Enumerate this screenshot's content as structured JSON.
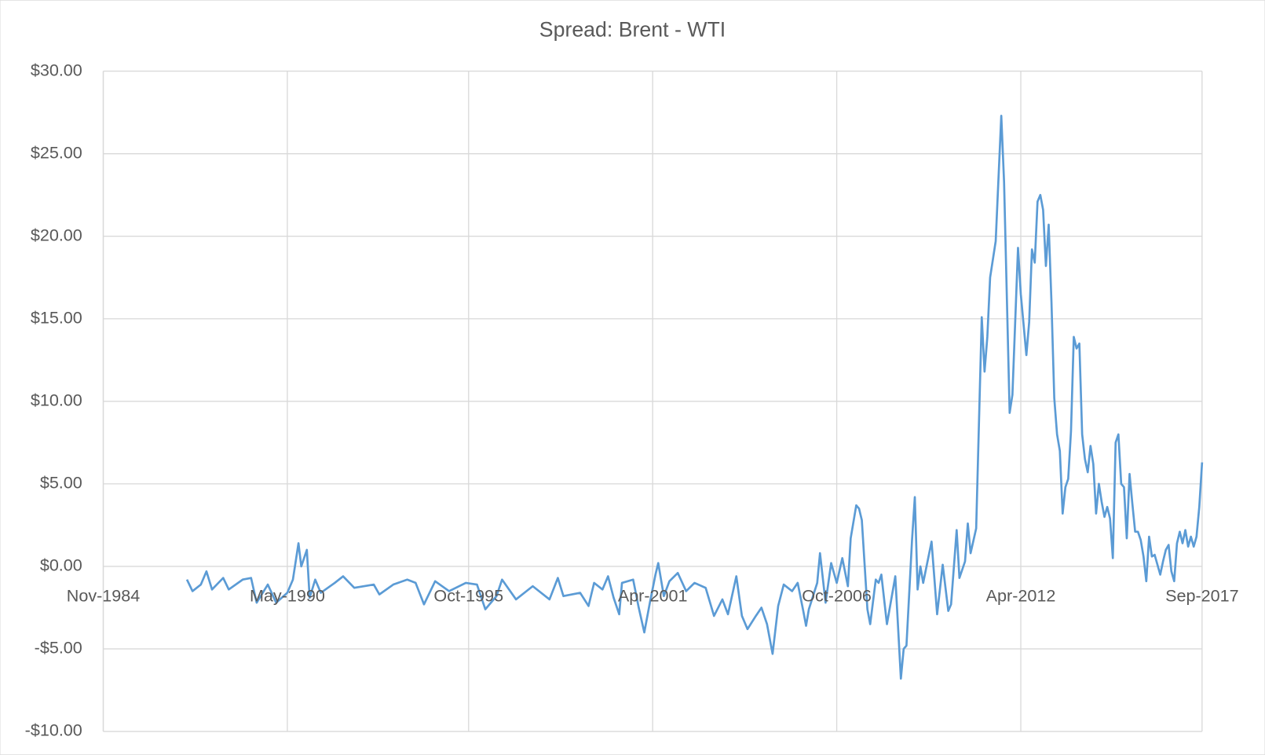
{
  "chart_data": {
    "type": "line",
    "title": "Spread: Brent - WTI",
    "xlim": [
      "Nov-1984",
      "Sep-2017"
    ],
    "xticks": [
      "Nov-1984",
      "May-1990",
      "Oct-1995",
      "Apr-2001",
      "Oct-2006",
      "Apr-2012",
      "Sep-2017"
    ],
    "ylim": [
      -10,
      30
    ],
    "yticks": [
      {
        "value": -10,
        "label": "-$10.00"
      },
      {
        "value": -5,
        "label": "-$5.00"
      },
      {
        "value": 0,
        "label": "$0.00"
      },
      {
        "value": 5,
        "label": "$5.00"
      },
      {
        "value": 10,
        "label": "$10.00"
      },
      {
        "value": 15,
        "label": "$15.00"
      },
      {
        "value": 20,
        "label": "$20.00"
      },
      {
        "value": 25,
        "label": "$25.00"
      },
      {
        "value": 30,
        "label": "$30.00"
      }
    ],
    "grid": true,
    "x": [
      "May-1987",
      "Jul-1987",
      "Oct-1987",
      "Dec-1987",
      "Feb-1988",
      "Jun-1988",
      "Aug-1988",
      "Jan-1989",
      "Apr-1989",
      "Jun-1989",
      "Oct-1989",
      "Jan-1990",
      "May-1990",
      "Jul-1990",
      "Sep-1990",
      "Oct-1990",
      "Dec-1990",
      "Jan-1991",
      "Mar-1991",
      "May-1991",
      "Oct-1991",
      "Jan-1992",
      "May-1992",
      "Dec-1992",
      "Feb-1993",
      "Jul-1993",
      "Dec-1993",
      "Mar-1994",
      "Jun-1994",
      "Oct-1994",
      "Mar-1995",
      "Sep-1995",
      "Jan-1996",
      "Apr-1996",
      "Aug-1996",
      "Oct-1996",
      "Mar-1997",
      "Sep-1997",
      "Mar-1998",
      "Jun-1998",
      "Aug-1998",
      "Feb-1999",
      "May-1999",
      "Jul-1999",
      "Oct-1999",
      "Dec-1999",
      "Feb-2000",
      "Apr-2000",
      "May-2000",
      "Sep-2000",
      "Nov-2000",
      "Jan-2001",
      "Mar-2001",
      "May-2001",
      "Jun-2001",
      "Aug-2001",
      "Oct-2001",
      "Jan-2002",
      "Apr-2002",
      "Jul-2002",
      "Nov-2002",
      "Feb-2003",
      "May-2003",
      "Jul-2003",
      "Oct-2003",
      "Dec-2003",
      "Feb-2004",
      "May-2004",
      "Jul-2004",
      "Sep-2004",
      "Nov-2004",
      "Jan-2005",
      "Mar-2005",
      "Jun-2005",
      "Aug-2005",
      "Oct-2005",
      "Nov-2005",
      "Dec-2005",
      "Mar-2006",
      "Apr-2006",
      "Jun-2006",
      "Aug-2006",
      "Oct-2006",
      "Dec-2006",
      "Feb-2007",
      "Mar-2007",
      "May-2007",
      "Jun-2007",
      "Jul-2007",
      "Sep-2007",
      "Oct-2007",
      "Dec-2007",
      "Jan-2008",
      "Feb-2008",
      "Apr-2008",
      "Jul-2008",
      "Sep-2008",
      "Oct-2008",
      "Nov-2008",
      "Jan-2009",
      "Feb-2009",
      "Mar-2009",
      "Apr-2009",
      "May-2009",
      "Aug-2009",
      "Oct-2009",
      "Dec-2009",
      "Feb-2010",
      "Mar-2010",
      "May-2010",
      "Jun-2010",
      "Aug-2010",
      "Sep-2010",
      "Oct-2010",
      "Dec-2010",
      "Feb-2011",
      "Mar-2011",
      "Apr-2011",
      "May-2011",
      "Jul-2011",
      "Sep-2011",
      "Oct-2011",
      "Dec-2011",
      "Jan-2012",
      "Mar-2012",
      "Apr-2012",
      "Jun-2012",
      "Jul-2012",
      "Aug-2012",
      "Sep-2012",
      "Oct-2012",
      "Nov-2012",
      "Dec-2012",
      "Jan-2013",
      "Feb-2013",
      "Mar-2013",
      "Apr-2013",
      "May-2013",
      "Jun-2013",
      "Jul-2013",
      "Aug-2013",
      "Sep-2013",
      "Oct-2013",
      "Nov-2013",
      "Dec-2013",
      "Jan-2014",
      "Feb-2014",
      "Mar-2014",
      "Apr-2014",
      "May-2014",
      "Jun-2014",
      "Jul-2014",
      "Aug-2014",
      "Sep-2014",
      "Oct-2014",
      "Nov-2014",
      "Dec-2014",
      "Jan-2015",
      "Feb-2015",
      "Mar-2015",
      "Apr-2015",
      "May-2015",
      "Jun-2015",
      "Jul-2015",
      "Aug-2015",
      "Sep-2015",
      "Oct-2015",
      "Nov-2015",
      "Dec-2015",
      "Jan-2016",
      "Feb-2016",
      "Mar-2016",
      "Apr-2016",
      "May-2016",
      "Jun-2016",
      "Jul-2016",
      "Aug-2016",
      "Sep-2016",
      "Oct-2016",
      "Nov-2016",
      "Dec-2016",
      "Jan-2017",
      "Feb-2017",
      "Mar-2017",
      "Apr-2017",
      "May-2017",
      "Jun-2017",
      "Jul-2017",
      "Aug-2017",
      "Sep-2017"
    ],
    "series": [
      {
        "color": "#5b9bd5",
        "values": [
          -0.8,
          -1.5,
          -1.1,
          -0.3,
          -1.4,
          -0.7,
          -1.4,
          -0.8,
          -0.7,
          -2.2,
          -1.1,
          -2.2,
          -1.6,
          -0.8,
          1.4,
          0.0,
          1.0,
          -1.9,
          -0.8,
          -1.6,
          -1.0,
          -0.6,
          -1.3,
          -1.1,
          -1.7,
          -1.1,
          -0.8,
          -1.0,
          -2.3,
          -0.9,
          -1.5,
          -1.0,
          -1.1,
          -2.6,
          -1.8,
          -0.8,
          -2.0,
          -1.2,
          -2.0,
          -0.7,
          -1.8,
          -1.6,
          -2.4,
          -1.0,
          -1.4,
          -0.6,
          -1.9,
          -2.9,
          -1.0,
          -0.8,
          -2.5,
          -4.0,
          -2.2,
          -0.5,
          0.2,
          -1.8,
          -0.9,
          -0.4,
          -1.5,
          -1.0,
          -1.3,
          -3.0,
          -2.0,
          -2.9,
          -0.6,
          -3.0,
          -3.8,
          -3.0,
          -2.5,
          -3.5,
          -5.3,
          -2.4,
          -1.1,
          -1.5,
          -1.0,
          -2.7,
          -3.6,
          -2.6,
          -1.0,
          0.8,
          -2.2,
          0.2,
          -1.0,
          0.5,
          -1.2,
          1.7,
          3.7,
          3.5,
          2.8,
          -2.6,
          -3.5,
          -0.8,
          -1.0,
          -0.5,
          -3.5,
          -0.6,
          -6.8,
          -5.0,
          -4.8,
          1.6,
          4.2,
          -1.4,
          0.0,
          -1.0,
          1.5,
          -2.9,
          0.1,
          -2.7,
          -2.3,
          2.2,
          -0.7,
          0.3,
          2.6,
          0.8,
          2.3,
          15.1,
          11.8,
          13.9,
          17.5,
          19.7,
          27.3,
          23.3,
          9.3,
          10.4,
          19.3,
          16.5,
          12.8,
          14.8,
          19.2,
          18.4,
          22.1,
          22.5,
          21.6,
          18.2,
          20.7,
          16.0,
          10.2,
          8.0,
          7.0,
          3.2,
          4.8,
          5.3,
          8.2,
          13.9,
          13.2,
          13.5,
          8.0,
          6.5,
          5.7,
          7.3,
          6.2,
          3.2,
          5.0,
          3.9,
          3.0,
          3.6,
          2.9,
          0.5,
          7.5,
          8.0,
          5.0,
          4.8,
          1.7,
          5.6,
          3.8,
          2.1,
          2.1,
          1.6,
          0.6,
          -0.9,
          1.8,
          0.6,
          0.7,
          0.1,
          -0.5,
          0.3,
          1.0,
          1.3,
          -0.3,
          -0.9,
          1.4,
          2.1,
          1.4,
          2.2,
          1.2,
          1.8,
          1.2,
          1.8,
          3.6,
          6.3
        ]
      }
    ]
  }
}
